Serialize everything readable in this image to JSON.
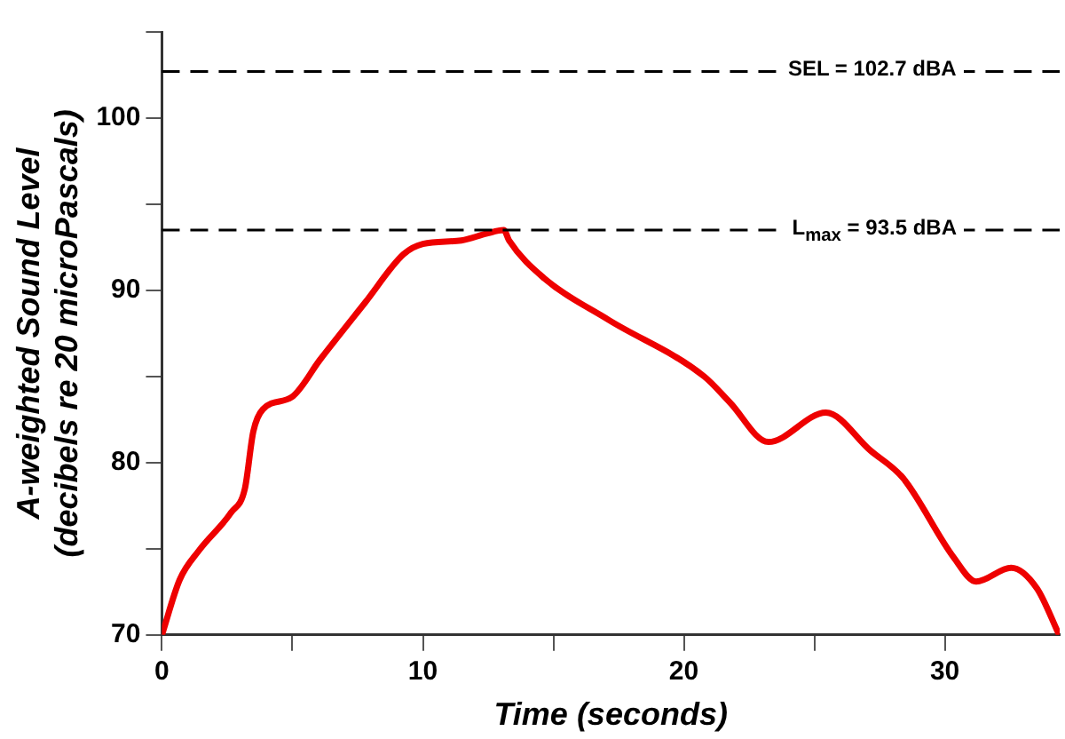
{
  "chart_data": {
    "type": "line",
    "xlabel": "Time (seconds)",
    "ylabel": "A-weighted Sound Level\n(decibels re 20 microPascals)",
    "xlim": [
      0,
      34.4
    ],
    "ylim": [
      70,
      105
    ],
    "xticks": [
      0,
      {
        "value": 5,
        "label": null
      },
      10,
      {
        "value": 15,
        "label": null
      },
      20,
      {
        "value": 25,
        "label": null
      },
      30
    ],
    "yticks": [
      70,
      {
        "value": 75,
        "label": null
      },
      80,
      {
        "value": 85,
        "label": null
      },
      90,
      {
        "value": 95,
        "label": null
      },
      100,
      {
        "value": 105,
        "label": null
      }
    ],
    "grid": false,
    "legend": false,
    "marker": "none",
    "line_style": "solid",
    "series": [
      {
        "color": "#ee0000",
        "x": [
          0,
          0.68,
          1.42,
          2.65,
          3.18,
          3.5,
          3.87,
          4.97,
          6.07,
          7.79,
          9.26,
          10.0,
          11.47,
          12.45,
          13.1,
          13.3,
          14.65,
          17.1,
          20.78,
          21.76,
          23.24,
          25.44,
          27.15,
          28.4,
          30.34,
          31.2,
          32.54,
          33.53,
          34.38
        ],
        "values": [
          70,
          73.2,
          74.9,
          77.1,
          78.5,
          81.8,
          83.1,
          83.8,
          86.0,
          89.3,
          92.1,
          92.7,
          92.9,
          93.3,
          93.5,
          92.9,
          90.7,
          88.3,
          85.0,
          83.5,
          81.2,
          82.9,
          80.7,
          79.1,
          74.5,
          73.1,
          73.9,
          72.7,
          70
        ]
      }
    ],
    "ref_lines": [
      {
        "axis": "y",
        "value": 102.7,
        "label": "SEL = 102.7 dBA",
        "color": "#000000",
        "line_style": "dashed"
      },
      {
        "axis": "y",
        "value": 93.5,
        "label": "L$_{max}$ = 93.5 dBA",
        "color": "#000000",
        "line_style": "dashed"
      }
    ]
  }
}
